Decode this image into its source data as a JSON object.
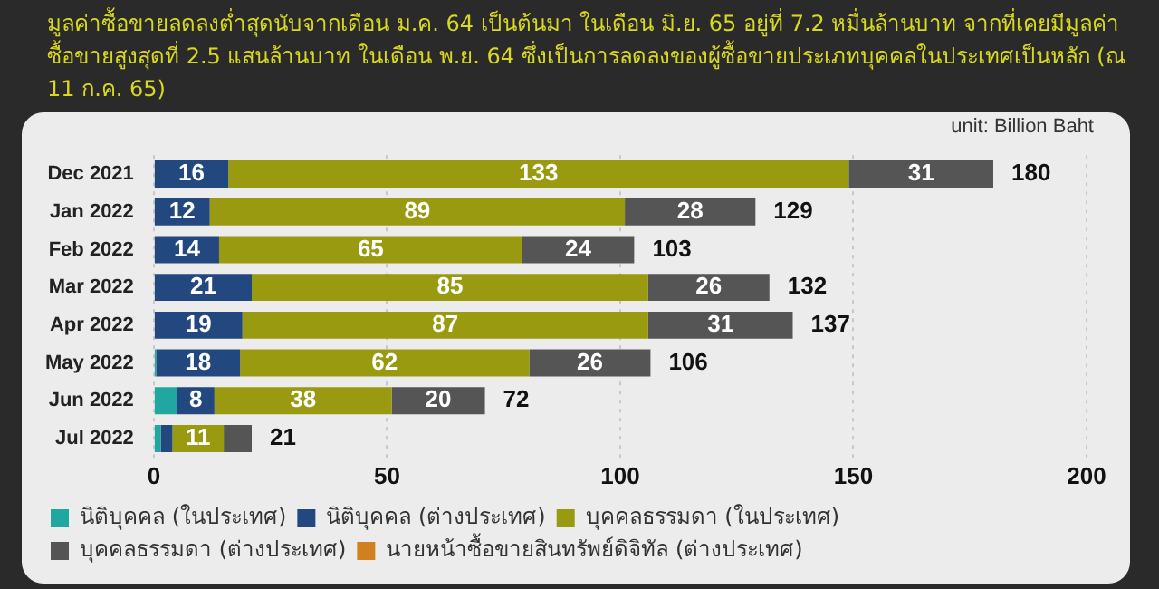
{
  "chart_data": {
    "type": "bar",
    "orientation": "horizontal",
    "stacked": true,
    "title": "มูลค่าซื้อขายลดลงต่ำสุดนับจากเดือน ม.ค. 64 เป็นต้นมา ในเดือน มิ.ย. 65 อยู่ที่ 7.2 หมื่นล้านบาท จากที่เคยมีมูลค่าซื้อขายสูงสุดที่ 2.5 แสนล้านบาท ในเดือน พ.ย. 64 ซึ่งเป็นการลดลงของผู้ซื้อขายประเภทบุคคลในประเทศเป็นหลัก (ณ 11 ก.ค. 65)",
    "annotations": [
      "unit:  Billion Baht"
    ],
    "categories": [
      "Dec 2021",
      "Jan 2022",
      "Feb 2022",
      "Mar 2022",
      "Apr 2022",
      "May 2022",
      "Jun 2022",
      "Jul 2022"
    ],
    "series": [
      {
        "name": "นิติบุคคล (ในประเทศ)",
        "color": "#20a8a0",
        "values": [
          0,
          0,
          0,
          0,
          0,
          0.5,
          5,
          1.5
        ],
        "value_labels": [
          null,
          null,
          null,
          null,
          null,
          null,
          null,
          null
        ]
      },
      {
        "name": "นิติบุคคล (ต่างประเทศ)",
        "color": "#234880",
        "values": [
          16,
          12,
          14,
          21,
          19,
          18,
          8,
          2.5
        ],
        "value_labels": [
          "16",
          "12",
          "14",
          "21",
          "19",
          "18",
          "8",
          null
        ]
      },
      {
        "name": "บุคคลธรรมดา (ในประเทศ)",
        "color": "#9a9a10",
        "values": [
          133,
          89,
          65,
          85,
          87,
          62,
          38,
          11
        ],
        "value_labels": [
          "133",
          "89",
          "65",
          "85",
          "87",
          "62",
          "38",
          "11"
        ]
      },
      {
        "name": "บุคคลธรรมดา (ต่างประเทศ)",
        "color": "#555555",
        "values": [
          31,
          28,
          24,
          26,
          31,
          26,
          20,
          6
        ],
        "value_labels": [
          "31",
          "28",
          "24",
          "26",
          "31",
          "26",
          "20",
          null
        ]
      },
      {
        "name": "นายหน้าซื้อขายสินทรัพย์ดิจิทัล (ต่างประเทศ)",
        "color": "#d08020",
        "values": [
          0,
          0,
          0,
          0,
          0,
          0,
          0,
          0
        ],
        "value_labels": [
          null,
          null,
          null,
          null,
          null,
          null,
          null,
          null
        ]
      }
    ],
    "totals": [
      "180",
      "129",
      "103",
      "132",
      "137",
      "106",
      "72",
      "21"
    ],
    "xlim": [
      0,
      200
    ],
    "xticks": [
      0,
      50,
      100,
      150,
      200
    ],
    "grid": "x",
    "legend": "bottom"
  }
}
